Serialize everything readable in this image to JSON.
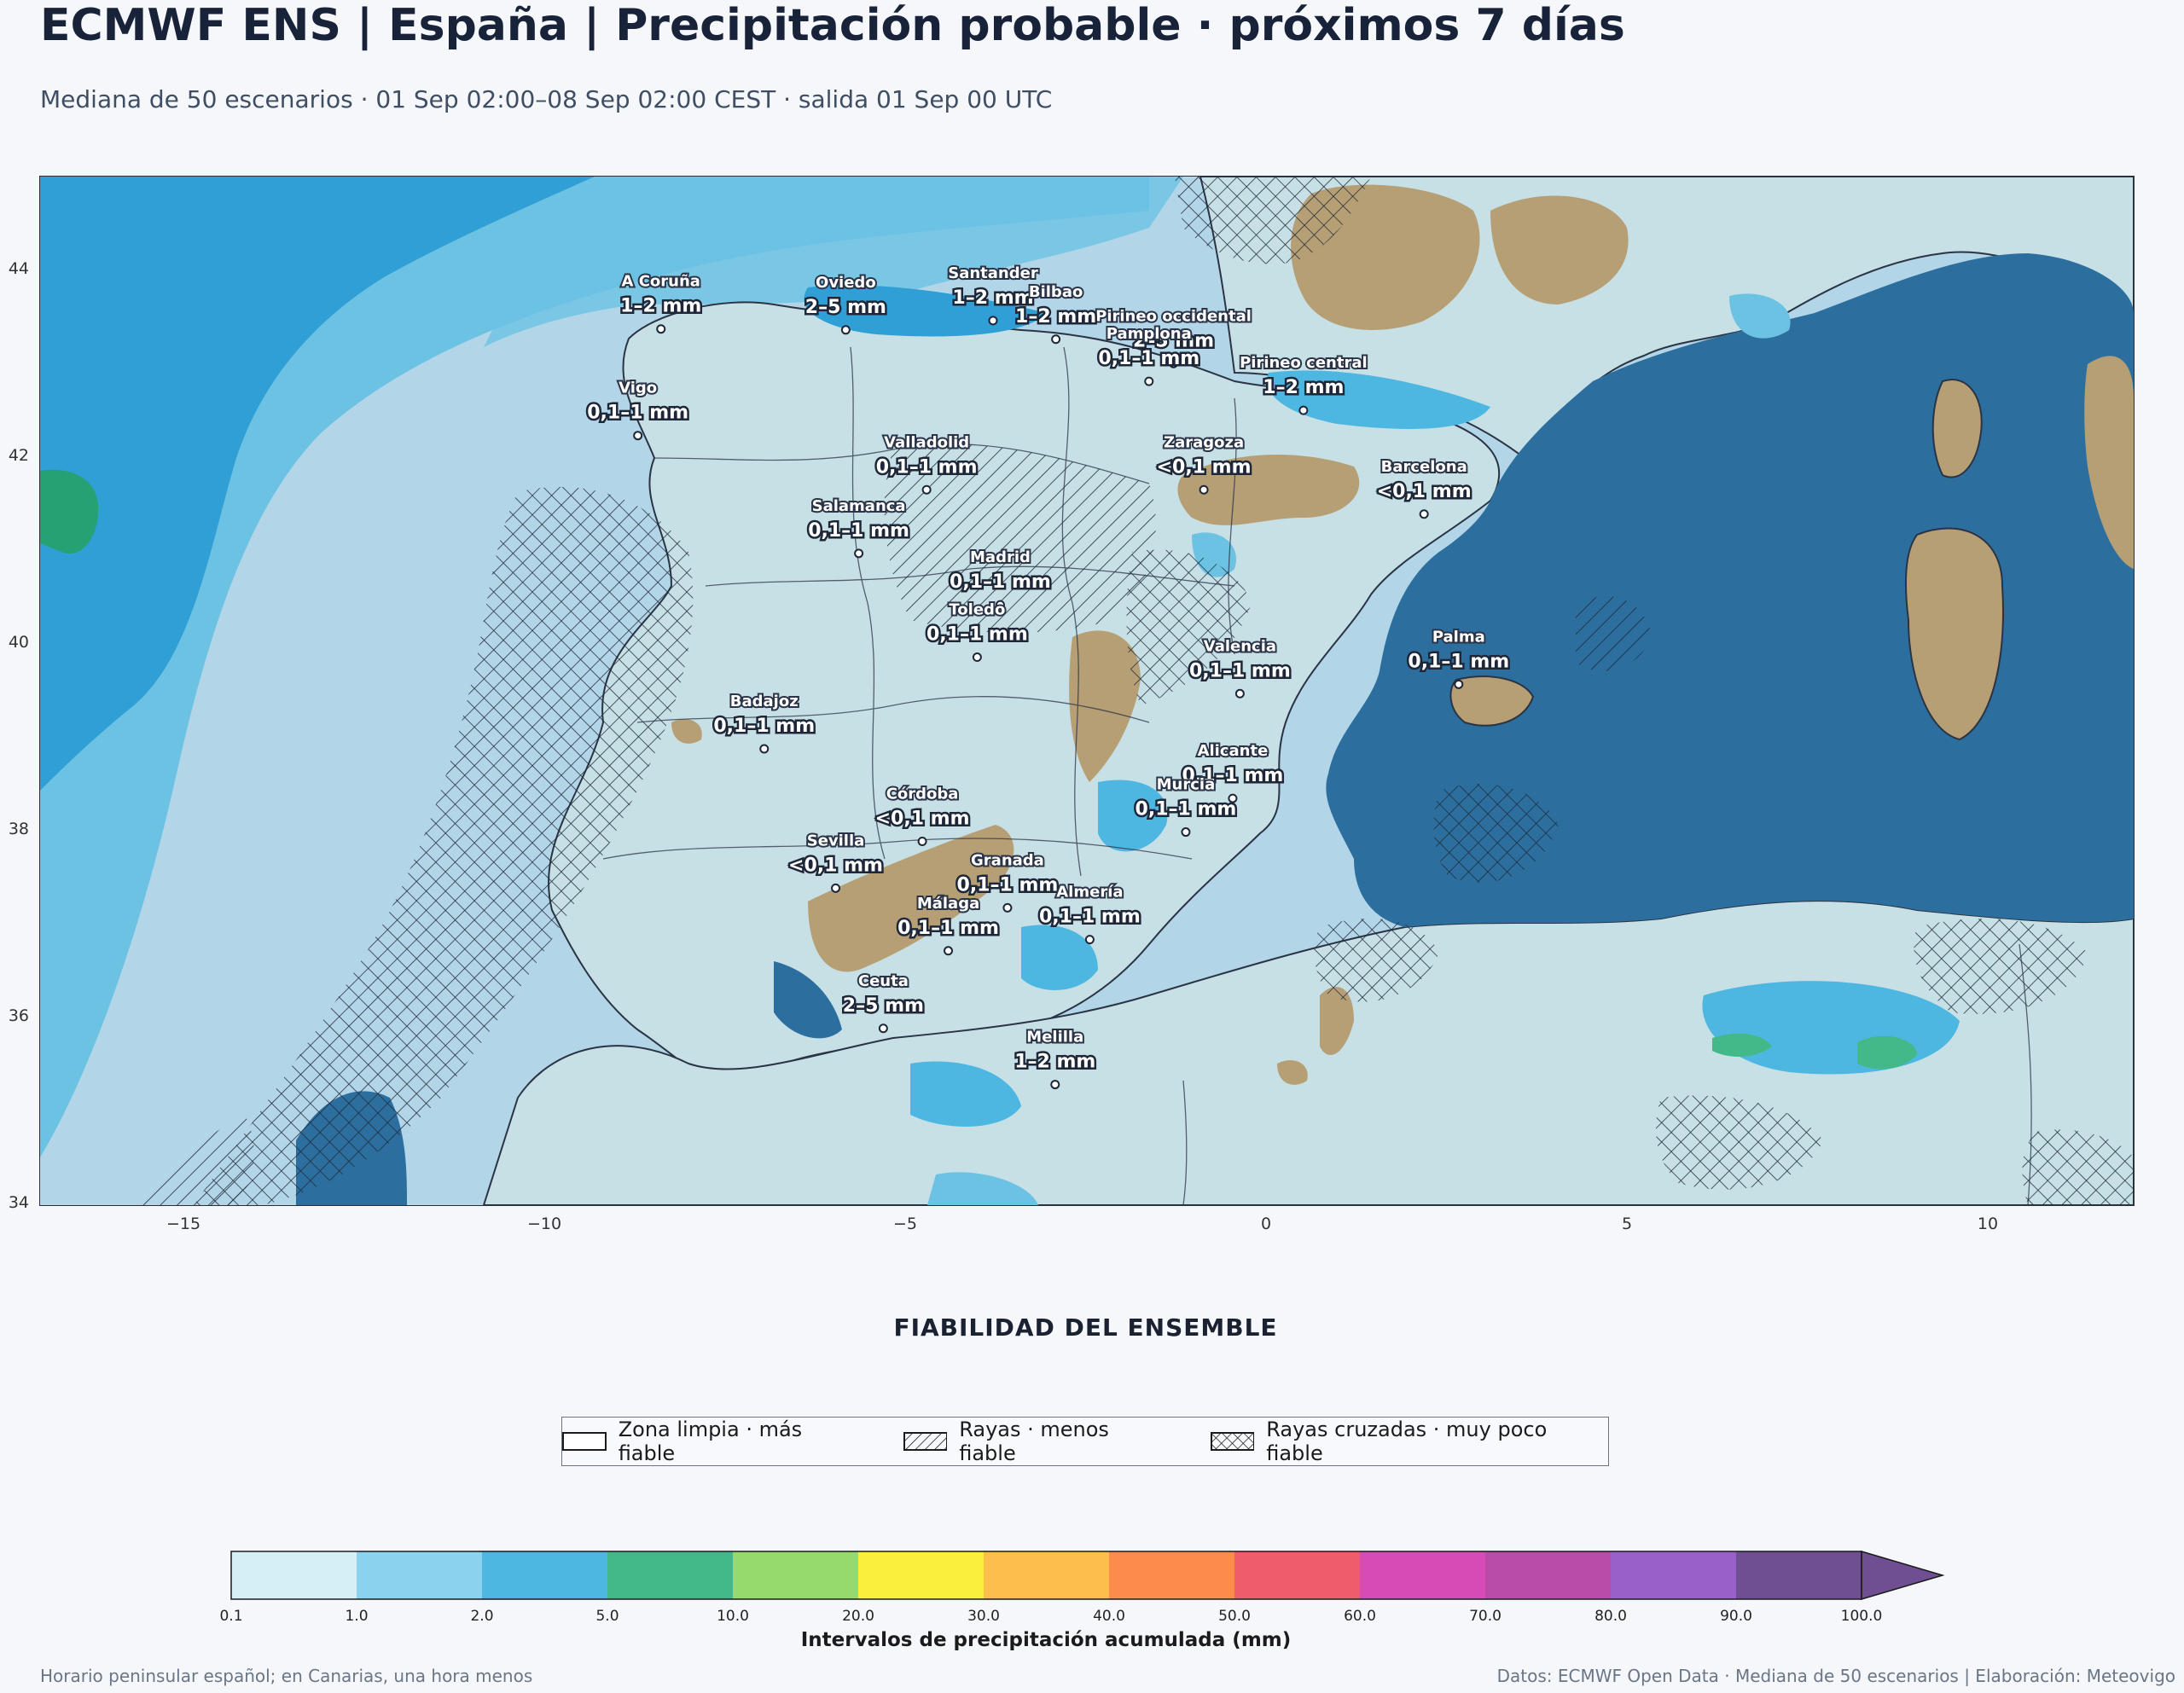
{
  "header": {
    "title": "ECMWF ENS | España | Precipitación probable · próximos 7 días",
    "subtitle": "Mediana de 50 escenarios · 01 Sep 02:00–08 Sep 02:00 CEST · salida 01 Sep 00 UTC"
  },
  "map": {
    "extent": {
      "lon": [
        -17,
        12
      ],
      "lat": [
        34,
        45
      ]
    },
    "y_ticks": [
      "44",
      "42",
      "40",
      "38",
      "36",
      "34"
    ],
    "x_ticks": [
      "−15",
      "−10",
      "−5",
      "0",
      "5",
      "10"
    ],
    "colors": {
      "sea": "#b3d5e8",
      "mediterranean": "#2c6f9f",
      "atlantic_deep": "#2f9fd6",
      "land_low": "#c7e0e6",
      "dry": "#b79f75"
    },
    "cities": [
      {
        "name": "A Coruña",
        "value": "1–2 mm",
        "lon": -8.4,
        "lat": 43.37
      },
      {
        "name": "Oviedo",
        "value": "2–5 mm",
        "lon": -5.84,
        "lat": 43.36
      },
      {
        "name": "Santander",
        "value": "1–2 mm",
        "lon": -3.8,
        "lat": 43.46
      },
      {
        "name": "Pirineo occidental",
        "value": "2–5 mm",
        "lon": -1.3,
        "lat": 43.0
      },
      {
        "name": "Pamplona",
        "value": "0,1–1 mm",
        "lon": -1.64,
        "lat": 42.81
      },
      {
        "name": "Pirineo central",
        "value": "1–2 mm",
        "lon": 0.5,
        "lat": 42.5
      },
      {
        "name": "Bilbao",
        "value": "1–2 mm",
        "lon": -2.93,
        "lat": 43.26
      },
      {
        "name": "Vigo",
        "value": "0,1–1 mm",
        "lon": -8.72,
        "lat": 42.23
      },
      {
        "name": "Valladolid",
        "value": "0,1–1 mm",
        "lon": -4.72,
        "lat": 41.65
      },
      {
        "name": "Zaragoza",
        "value": "<0,1 mm",
        "lon": -0.88,
        "lat": 41.65
      },
      {
        "name": "Barcelona",
        "value": "<0,1 mm",
        "lon": 2.17,
        "lat": 41.39
      },
      {
        "name": "Salamanca",
        "value": "0,1–1 mm",
        "lon": -5.66,
        "lat": 40.97
      },
      {
        "name": "Madrid",
        "value": "0,1–1 mm",
        "lon": -3.7,
        "lat": 40.42
      },
      {
        "name": "Valencia",
        "value": "0,1–1 mm",
        "lon": -0.38,
        "lat": 39.47
      },
      {
        "name": "Toledo",
        "value": "0,1–1 mm",
        "lon": -4.02,
        "lat": 39.86
      },
      {
        "name": "Badajoz",
        "value": "0,1–1 mm",
        "lon": -6.97,
        "lat": 38.88
      },
      {
        "name": "Palma",
        "value": "0,1–1 mm",
        "lon": 2.65,
        "lat": 39.57
      },
      {
        "name": "Córdoba",
        "value": "<0,1 mm",
        "lon": -4.78,
        "lat": 37.89
      },
      {
        "name": "Alicante",
        "value": "0,1–1 mm",
        "lon": -0.48,
        "lat": 38.35
      },
      {
        "name": "Murcia",
        "value": "0,1–1 mm",
        "lon": -1.13,
        "lat": 37.99
      },
      {
        "name": "Granada",
        "value": "0,1–1 mm",
        "lon": -3.6,
        "lat": 37.18
      },
      {
        "name": "Sevilla",
        "value": "<0,1 mm",
        "lon": -5.98,
        "lat": 37.39
      },
      {
        "name": "Almería",
        "value": "0,1–1 mm",
        "lon": -2.46,
        "lat": 36.84
      },
      {
        "name": "Málaga",
        "value": "0,1–1 mm",
        "lon": -4.42,
        "lat": 36.72
      },
      {
        "name": "Ceuta",
        "value": "2–5 mm",
        "lon": -5.32,
        "lat": 35.89
      },
      {
        "name": "Melilla",
        "value": "1–2 mm",
        "lon": -2.94,
        "lat": 35.29
      }
    ]
  },
  "reliability": {
    "title": "FIABILIDAD DEL ENSEMBLE",
    "items": [
      {
        "label": "Zona limpia · más fiable",
        "pattern": "none"
      },
      {
        "label": "Rayas · menos fiable",
        "pattern": "diagonal"
      },
      {
        "label": "Rayas cruzadas · muy poco fiable",
        "pattern": "crosshatch"
      }
    ]
  },
  "colorbar": {
    "label": "Intervalos de precipitación acumulada (mm)",
    "ticks": [
      "0.1",
      "1.0",
      "2.0",
      "5.0",
      "10.0",
      "20.0",
      "30.0",
      "40.0",
      "50.0",
      "60.0",
      "70.0",
      "80.0",
      "90.0",
      "100.0"
    ],
    "colors": [
      "#d6eef6",
      "#8ad2ee",
      "#4db7e2",
      "#43b989",
      "#96da6e",
      "#fbef3e",
      "#fdbf4c",
      "#fd8b4b",
      "#ef5d6d",
      "#d64bb6",
      "#b94ca9",
      "#9960c9",
      "#6f4e92"
    ],
    "extend_color": "#6f4e92"
  },
  "footer": {
    "left": "Horario peninsular español; en Canarias, una hora menos",
    "right": "Datos: ECMWF Open Data · Mediana de 50 escenarios | Elaboración: Meteovigo"
  }
}
